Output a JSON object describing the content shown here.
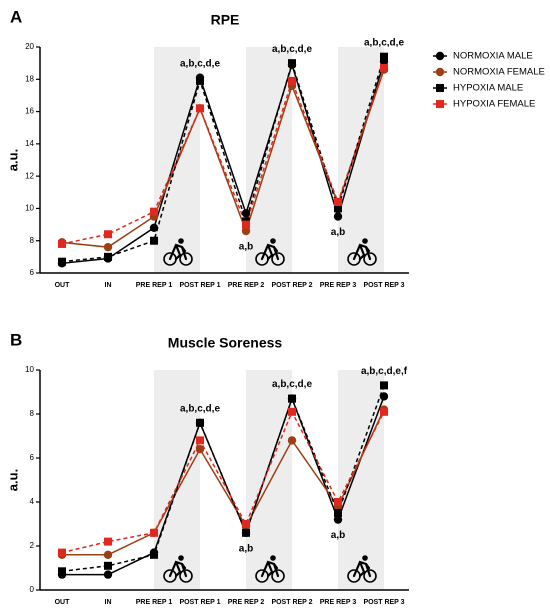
{
  "chart_data": [
    {
      "type": "line",
      "panel_label": "A",
      "title": "RPE",
      "y_label": "a.u.",
      "categories": [
        "OUT",
        "IN",
        "PRE REP 1",
        "POST REP 1",
        "PRE REP 2",
        "POST REP 2",
        "PRE REP 3",
        "POST REP 3"
      ],
      "ylim": [
        6,
        20
      ],
      "yticks": [
        6,
        8,
        10,
        12,
        14,
        16,
        18,
        20
      ],
      "legend": "right",
      "series": [
        {
          "name": "NORMOXIA MALE",
          "color": "#000000",
          "marker": "circle",
          "dashed": false,
          "values": [
            6.6,
            6.9,
            8.8,
            18.1,
            9.7,
            18.9,
            9.5,
            19.1
          ]
        },
        {
          "name": "NORMOXIA FEMALE",
          "color": "#9c3f12",
          "marker": "circle",
          "dashed": false,
          "values": [
            7.9,
            7.6,
            9.5,
            16.2,
            8.6,
            17.6,
            10.3,
            18.6
          ]
        },
        {
          "name": "HYPOXIA MALE",
          "color": "#000000",
          "marker": "square",
          "dashed": true,
          "values": [
            6.7,
            7.0,
            8.0,
            17.9,
            9.2,
            19.0,
            10.0,
            19.4
          ]
        },
        {
          "name": "HYPOXIA FEMALE",
          "color": "#e0281e",
          "marker": "square",
          "dashed": true,
          "values": [
            7.8,
            8.4,
            9.8,
            16.2,
            9.0,
            17.9,
            10.4,
            18.7
          ]
        }
      ],
      "annotations": [
        {
          "text": "a,b,c,d,e",
          "category": "POST REP 1"
        },
        {
          "text": "a,b",
          "category": "PRE REP 2"
        },
        {
          "text": "a,b,c,d,e",
          "category": "POST REP 2"
        },
        {
          "text": "a,b",
          "category": "PRE REP 3"
        },
        {
          "text": "a,b,c,d,e",
          "category": "POST REP 3"
        }
      ]
    },
    {
      "type": "line",
      "panel_label": "B",
      "title": "Muscle Soreness",
      "y_label": "a.u.",
      "categories": [
        "OUT",
        "IN",
        "PRE REP 1",
        "POST REP 1",
        "PRE REP 2",
        "POST REP 2",
        "PRE REP 3",
        "POST REP 3"
      ],
      "ylim": [
        0,
        10
      ],
      "yticks": [
        0,
        2,
        4,
        6,
        8,
        10
      ],
      "series": [
        {
          "color": "#000000",
          "marker": "circle",
          "dashed": false,
          "values": [
            0.7,
            0.7,
            1.7,
            7.6,
            2.6,
            8.7,
            3.2,
            8.8
          ]
        },
        {
          "color": "#9c3f12",
          "marker": "circle",
          "dashed": false,
          "values": [
            1.6,
            1.6,
            2.6,
            6.4,
            2.9,
            6.8,
            3.8,
            8.2
          ]
        },
        {
          "color": "#000000",
          "marker": "square",
          "dashed": true,
          "values": [
            0.85,
            1.1,
            1.6,
            7.6,
            2.6,
            8.7,
            3.5,
            9.3
          ]
        },
        {
          "color": "#e0281e",
          "marker": "square",
          "dashed": true,
          "values": [
            1.7,
            2.2,
            2.6,
            6.8,
            3.0,
            8.1,
            4.0,
            8.1
          ]
        }
      ],
      "annotations": [
        {
          "text": "a,b,c,d,e",
          "category": "POST REP 1"
        },
        {
          "text": "a,b",
          "category": "PRE REP 2"
        },
        {
          "text": "a,b,c,d,e",
          "category": "POST REP 2"
        },
        {
          "text": "a,b",
          "category": "PRE REP 3"
        },
        {
          "text": "a,b,c,d,e,f",
          "category": "POST REP 3"
        }
      ]
    }
  ]
}
